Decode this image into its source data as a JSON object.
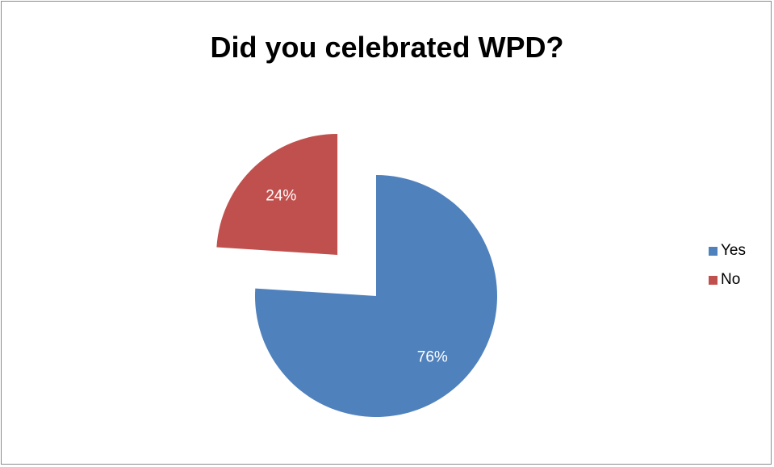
{
  "chart_data": {
    "type": "pie",
    "title": "Did you celebrated WPD?",
    "categories": [
      "Yes",
      "No"
    ],
    "values": [
      76,
      24
    ],
    "data_labels": [
      "76%",
      "24%"
    ],
    "colors": [
      "#4f81bd",
      "#c0504d"
    ],
    "exploded": true,
    "legend": "right"
  }
}
